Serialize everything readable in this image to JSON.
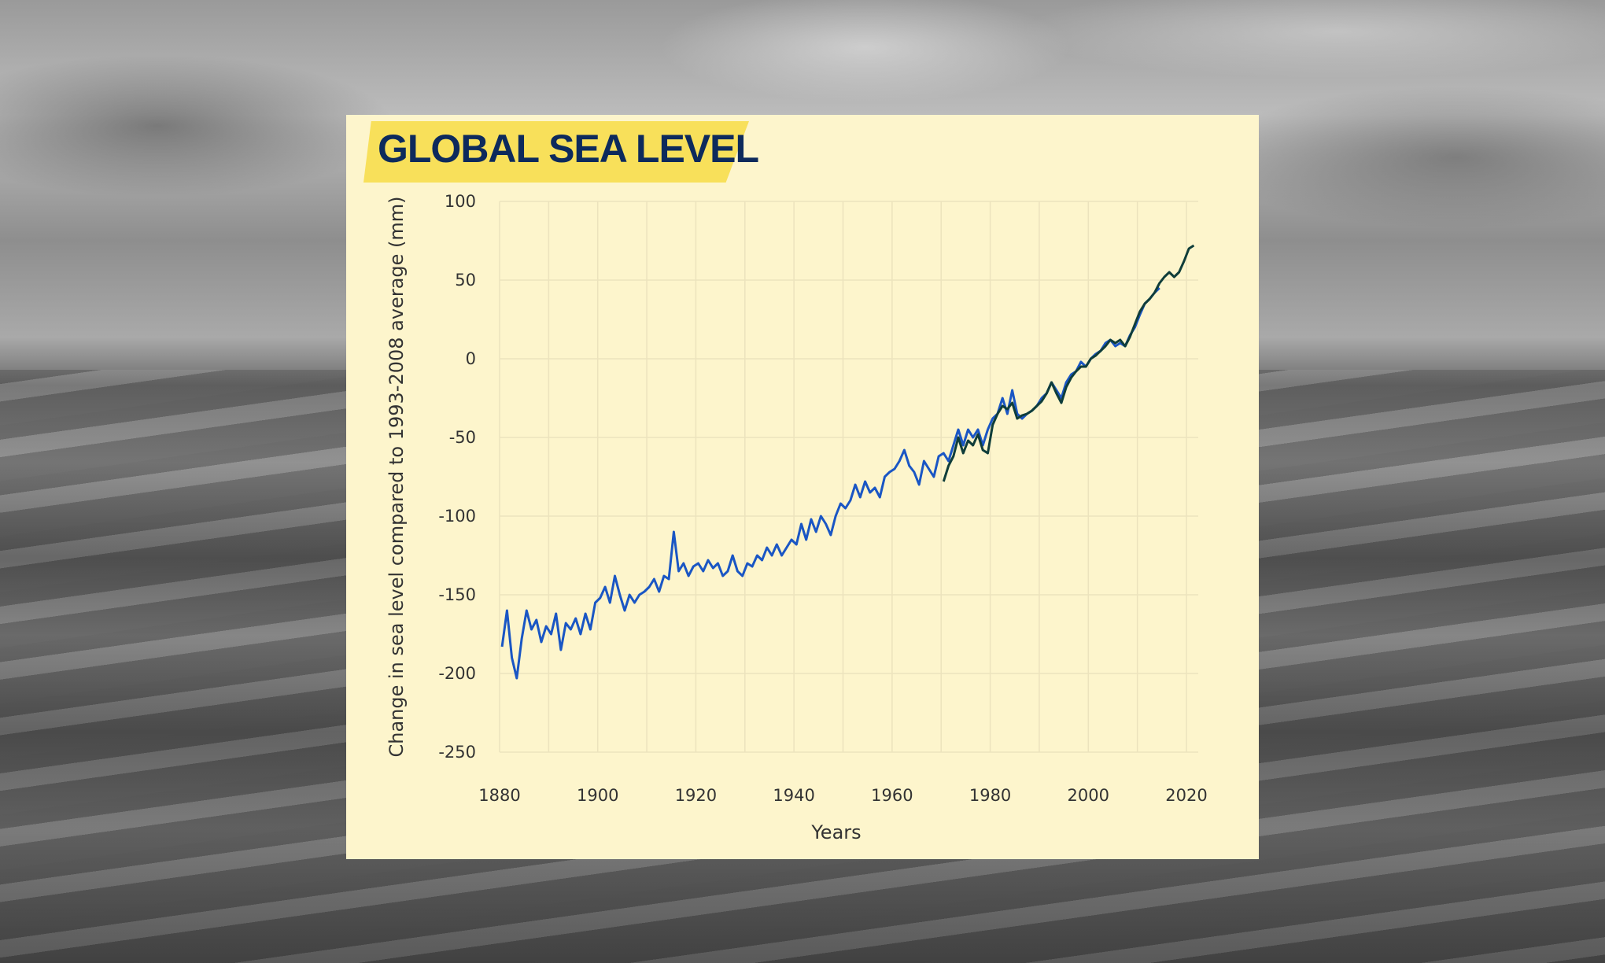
{
  "chart_data": {
    "type": "line",
    "title": "GLOBAL SEA LEVEL",
    "xlabel": "Years",
    "ylabel": "Change in sea level compared to 1993-2008 average (mm)",
    "xlim": [
      1880,
      2020
    ],
    "ylim": [
      -250,
      100
    ],
    "xticks": [
      1880,
      1900,
      1920,
      1940,
      1960,
      1980,
      2000,
      2020
    ],
    "yticks": [
      100,
      50,
      0,
      -50,
      -100,
      -150,
      -200,
      -250
    ],
    "grid": true,
    "colors": {
      "background": "#fdf5cc",
      "title_highlight": "#f8e05a",
      "title_text": "#0d2a5c"
    },
    "series": [
      {
        "color": "#1a56c4",
        "x_start": 1880,
        "values": [
          -183,
          -160,
          -190,
          -203,
          -178,
          -160,
          -172,
          -166,
          -180,
          -170,
          -175,
          -162,
          -185,
          -168,
          -172,
          -165,
          -175,
          -162,
          -172,
          -155,
          -152,
          -145,
          -155,
          -138,
          -150,
          -160,
          -150,
          -155,
          -150,
          -148,
          -145,
          -140,
          -148,
          -138,
          -140,
          -110,
          -135,
          -130,
          -138,
          -132,
          -130,
          -135,
          -128,
          -133,
          -130,
          -138,
          -135,
          -125,
          -135,
          -138,
          -130,
          -132,
          -125,
          -128,
          -120,
          -125,
          -118,
          -125,
          -120,
          -115,
          -118,
          -105,
          -115,
          -102,
          -110,
          -100,
          -105,
          -112,
          -100,
          -92,
          -95,
          -90,
          -80,
          -88,
          -78,
          -85,
          -82,
          -88,
          -75,
          -72,
          -70,
          -65,
          -58,
          -68,
          -72,
          -80,
          -65,
          -70,
          -75,
          -62,
          -60,
          -65,
          -55,
          -45,
          -55,
          -45,
          -50,
          -45,
          -55,
          -45,
          -38,
          -35,
          -25,
          -35,
          -20,
          -35,
          -38,
          -35,
          -33,
          -30,
          -25,
          -22,
          -15,
          -20,
          -25,
          -15,
          -10,
          -8,
          -2,
          -5,
          0,
          3,
          5,
          10,
          12,
          8,
          10,
          8,
          15,
          20,
          28,
          35,
          38,
          42,
          45
        ]
      },
      {
        "color": "#0f3d3a",
        "x_start": 1970,
        "values": [
          -78,
          -68,
          -62,
          -50,
          -60,
          -52,
          -55,
          -48,
          -58,
          -60,
          -42,
          -35,
          -30,
          -32,
          -28,
          -38,
          -36,
          -35,
          -33,
          -30,
          -27,
          -22,
          -15,
          -22,
          -28,
          -18,
          -12,
          -8,
          -5,
          -5,
          0,
          2,
          5,
          8,
          12,
          10,
          12,
          8,
          14,
          22,
          30,
          35,
          38,
          42,
          48,
          52,
          55,
          52,
          55,
          62,
          70,
          72
        ]
      }
    ]
  }
}
